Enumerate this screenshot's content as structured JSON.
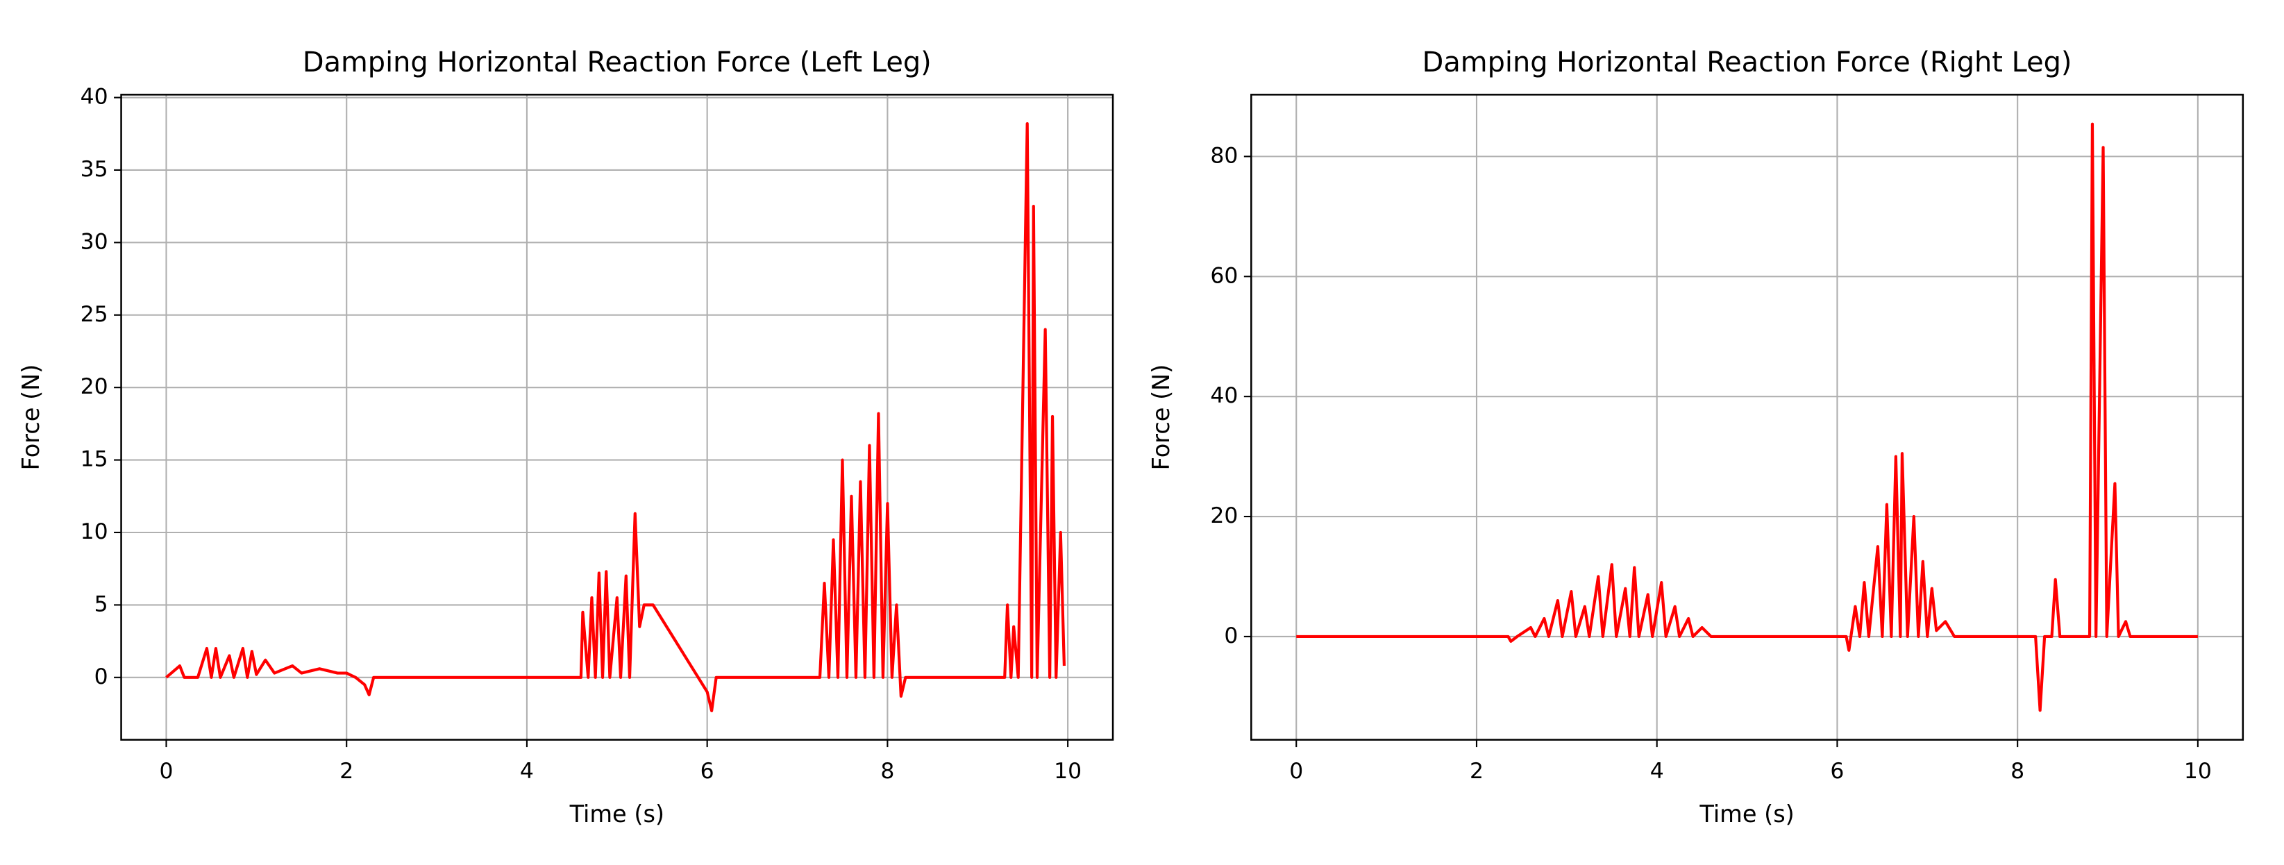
{
  "chart_data": [
    {
      "type": "line",
      "title": "Damping Horizontal Reaction Force (Left Leg)",
      "xlabel": "Time (s)",
      "ylabel": "Force (N)",
      "color": "#ff0000",
      "grid": true,
      "xlim": [
        -0.5,
        10.5
      ],
      "ylim": [
        -4.3,
        40.2
      ],
      "xticks": [
        0,
        2,
        4,
        6,
        8,
        10
      ],
      "yticks": [
        0,
        5,
        10,
        15,
        20,
        25,
        30,
        35,
        40
      ],
      "x": [
        0,
        0.15,
        0.2,
        0.35,
        0.45,
        0.5,
        0.55,
        0.6,
        0.7,
        0.75,
        0.85,
        0.9,
        0.95,
        1.0,
        1.1,
        1.2,
        1.4,
        1.5,
        1.7,
        1.9,
        2.0,
        2.1,
        2.2,
        2.25,
        2.3,
        4.6,
        4.62,
        4.68,
        4.72,
        4.76,
        4.8,
        4.84,
        4.88,
        4.92,
        5.0,
        5.04,
        5.1,
        5.14,
        5.2,
        5.25,
        5.3,
        5.4,
        5.6,
        5.8,
        6.0,
        6.05,
        6.1,
        7.25,
        7.3,
        7.35,
        7.4,
        7.45,
        7.5,
        7.55,
        7.6,
        7.65,
        7.7,
        7.75,
        7.8,
        7.85,
        7.9,
        7.95,
        8.0,
        8.05,
        8.1,
        8.15,
        8.2,
        9.3,
        9.33,
        9.37,
        9.4,
        9.45,
        9.55,
        9.6,
        9.62,
        9.66,
        9.75,
        9.8,
        9.83,
        9.87,
        9.92,
        9.96
      ],
      "values": [
        0,
        0.8,
        0,
        0,
        2,
        0,
        2,
        0,
        1.5,
        0,
        2,
        0,
        1.8,
        0.2,
        1.2,
        0.3,
        0.8,
        0.3,
        0.6,
        0.3,
        0.3,
        0,
        -0.5,
        -1.2,
        0,
        0,
        4.5,
        0,
        5.5,
        0,
        7.2,
        0,
        7.3,
        0,
        5.5,
        0,
        7,
        0,
        11.3,
        3.5,
        5,
        5,
        3,
        1,
        -1,
        -2.3,
        0,
        0,
        6.5,
        0,
        9.5,
        0,
        15,
        0,
        12.5,
        0,
        13.5,
        0,
        16,
        0,
        18.2,
        0,
        12,
        0,
        5,
        -1.3,
        0,
        0,
        5,
        0,
        3.5,
        0,
        38.2,
        0,
        32.5,
        0,
        24,
        0,
        18,
        0,
        10,
        0.8
      ]
    },
    {
      "type": "line",
      "title": "Damping Horizontal Reaction Force (Right Leg)",
      "xlabel": "Time (s)",
      "ylabel": "Force (N)",
      "color": "#ff0000",
      "grid": true,
      "xlim": [
        -0.5,
        10.5
      ],
      "ylim": [
        -17.2,
        90.3
      ],
      "xticks": [
        0,
        2,
        4,
        6,
        8,
        10
      ],
      "yticks": [
        0,
        20,
        40,
        60,
        80
      ],
      "x": [
        0,
        2.35,
        2.38,
        2.45,
        2.6,
        2.65,
        2.75,
        2.8,
        2.9,
        2.95,
        3.05,
        3.1,
        3.2,
        3.25,
        3.35,
        3.4,
        3.5,
        3.55,
        3.65,
        3.7,
        3.75,
        3.8,
        3.9,
        3.95,
        4.05,
        4.1,
        4.2,
        4.25,
        4.35,
        4.4,
        4.5,
        4.6,
        6.1,
        6.13,
        6.2,
        6.25,
        6.3,
        6.35,
        6.45,
        6.5,
        6.55,
        6.6,
        6.65,
        6.7,
        6.72,
        6.78,
        6.85,
        6.9,
        6.95,
        7.0,
        7.05,
        7.1,
        7.2,
        7.3,
        8.2,
        8.25,
        8.3,
        8.38,
        8.42,
        8.47,
        8.8,
        8.83,
        8.87,
        8.95,
        8.99,
        9.08,
        9.12,
        9.2,
        9.25,
        10
      ],
      "values": [
        0,
        0,
        -0.8,
        0,
        1.5,
        0,
        3,
        0,
        6,
        0,
        7.5,
        0,
        5,
        0,
        10,
        0,
        12,
        0,
        8,
        0,
        11.5,
        0,
        7,
        0,
        9,
        0,
        5,
        0,
        3,
        0,
        1.5,
        0,
        0,
        -2.3,
        5,
        0,
        9,
        0,
        15,
        0,
        22,
        0,
        30,
        0,
        30.5,
        0,
        20,
        0,
        12.5,
        0,
        8,
        1,
        2.5,
        0,
        0,
        -12.3,
        0,
        0,
        9.5,
        0,
        0,
        85.4,
        0,
        81.5,
        0,
        25.5,
        0,
        2.5,
        0,
        0
      ]
    }
  ]
}
